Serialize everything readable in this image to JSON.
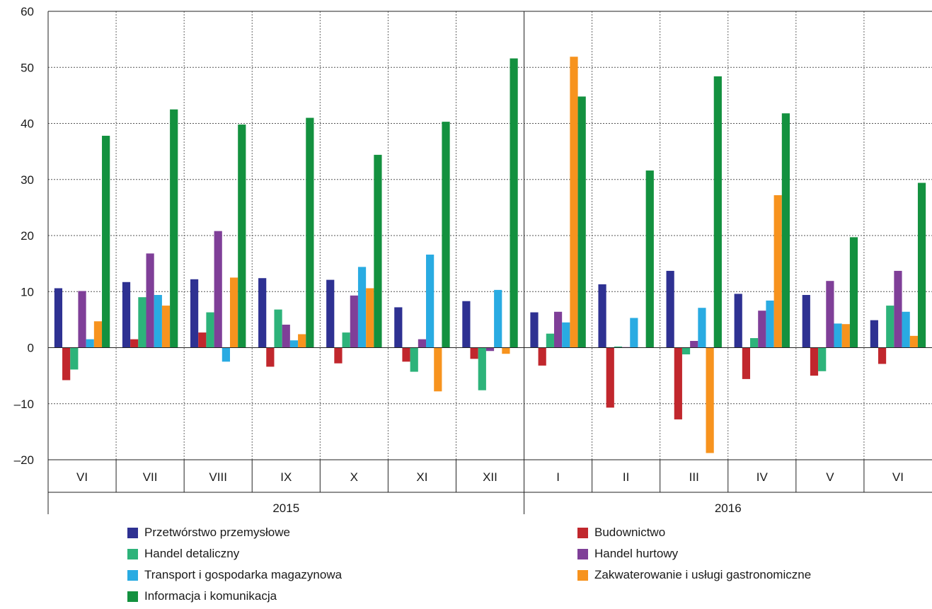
{
  "chart_data": {
    "type": "bar",
    "categories": [
      "VI",
      "VII",
      "VIII",
      "IX",
      "X",
      "XI",
      "XII",
      "I",
      "II",
      "III",
      "IV",
      "V",
      "VI"
    ],
    "year_groups": [
      {
        "label": "2015",
        "start": 0,
        "end": 6
      },
      {
        "label": "2016",
        "start": 7,
        "end": 12
      }
    ],
    "ylim": [
      -20,
      60
    ],
    "yticks": [
      -20,
      -10,
      0,
      10,
      20,
      30,
      40,
      50,
      60
    ],
    "ytick_labels": [
      "–20",
      "–10",
      "0",
      "10",
      "20",
      "30",
      "40",
      "50",
      "60"
    ],
    "grid": true,
    "legend_position": "bottom",
    "series": [
      {
        "name": "Przetwórstwo przemysłowe",
        "color": "#2e3192",
        "values": [
          10.6,
          11.7,
          12.2,
          12.4,
          12.1,
          7.2,
          8.3,
          6.3,
          11.3,
          13.7,
          9.6,
          9.4,
          4.9
        ]
      },
      {
        "name": "Budownictwo",
        "color": "#c1272d",
        "values": [
          -5.8,
          1.5,
          2.7,
          -3.4,
          -2.8,
          -2.5,
          -2.0,
          -3.2,
          -10.7,
          -12.8,
          -5.6,
          -5.0,
          -2.9
        ]
      },
      {
        "name": "Handel detaliczny",
        "color": "#2db37a",
        "values": [
          -3.9,
          9.0,
          6.3,
          6.8,
          2.7,
          -4.3,
          -7.6,
          2.5,
          0.2,
          -1.2,
          1.7,
          -4.2,
          7.5
        ]
      },
      {
        "name": "Handel hurtowy",
        "color": "#7f3f98",
        "values": [
          10.1,
          16.8,
          20.8,
          4.1,
          9.3,
          1.5,
          -0.6,
          6.4,
          0.1,
          1.2,
          6.6,
          11.9,
          13.7
        ]
      },
      {
        "name": "Transport i gospodarka magazynowa",
        "color": "#29abe2",
        "values": [
          1.5,
          9.4,
          -2.5,
          1.3,
          14.4,
          16.6,
          10.3,
          4.5,
          5.3,
          7.1,
          8.4,
          4.3,
          6.4
        ]
      },
      {
        "name": "Zakwaterowanie i usługi gastronomiczne",
        "color": "#f7931e",
        "values": [
          4.7,
          7.5,
          12.5,
          2.4,
          10.6,
          -7.8,
          -1.1,
          51.9,
          0,
          -18.8,
          27.2,
          4.2,
          2.1
        ]
      },
      {
        "name": "Informacja i komunikacja",
        "color": "#13913f",
        "values": [
          37.8,
          42.5,
          39.8,
          41.0,
          34.4,
          40.3,
          51.6,
          44.8,
          31.6,
          48.4,
          41.8,
          19.7,
          29.4
        ]
      }
    ]
  }
}
